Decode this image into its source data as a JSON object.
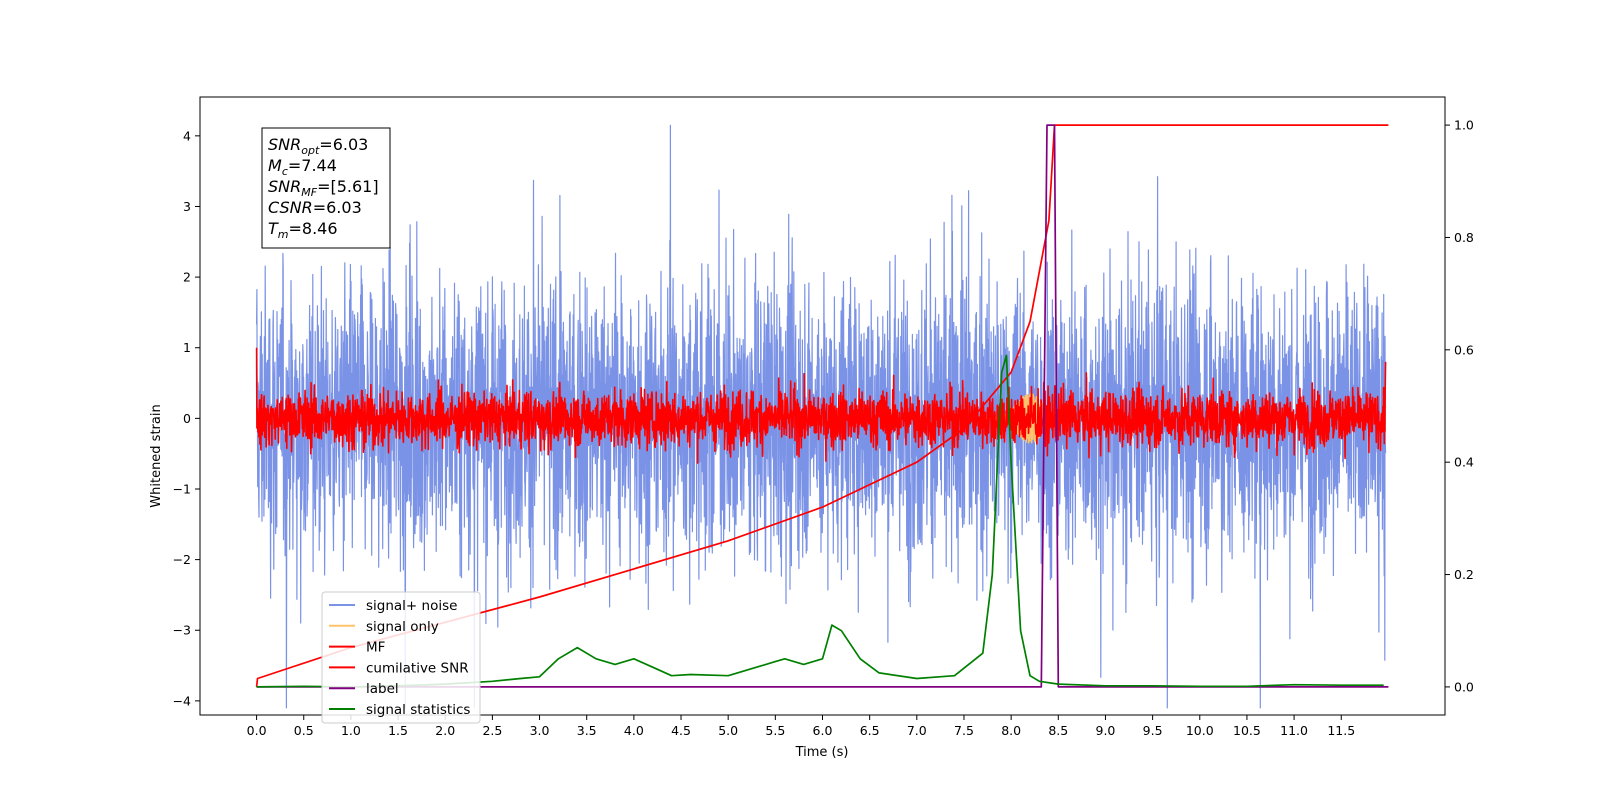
{
  "chart_data": {
    "type": "line",
    "xlabel": "Time (s)",
    "ylabel": "Whitened strain",
    "xlim": [
      -0.6,
      12.6
    ],
    "ylim": [
      -4.2,
      4.55
    ],
    "ylim_right": [
      -0.05,
      1.05
    ],
    "x_ticks": [
      "0.0",
      "0.5",
      "1.0",
      "1.5",
      "2.0",
      "2.5",
      "3.0",
      "3.5",
      "4.0",
      "4.5",
      "5.0",
      "5.5",
      "6.0",
      "6.5",
      "7.0",
      "7.5",
      "8.0",
      "8.5",
      "9.0",
      "9.5",
      "10.0",
      "10.5",
      "11.0",
      "11.5"
    ],
    "y_ticks": [
      "4",
      "3",
      "2",
      "1",
      "0",
      "−1",
      "−2",
      "−3",
      "−4"
    ],
    "y_ticks_right": [
      "1.0",
      "0.8",
      "0.6",
      "0.4",
      "0.2",
      "0.0"
    ],
    "legend_position": "lower-left",
    "annotation": {
      "lines": [
        {
          "name": "SNR",
          "sub": "opt",
          "value": "=6.03"
        },
        {
          "name": "M",
          "sub": "c",
          "value": "=7.44"
        },
        {
          "name": "SNR",
          "sub": "MF",
          "value": "=[5.61]"
        },
        {
          "name": "CSNR",
          "sub": "",
          "value": "=6.03"
        },
        {
          "name": "T",
          "sub": "m",
          "value": "=8.46"
        }
      ]
    },
    "series": [
      {
        "name": "signal+ noise",
        "color": "#7b93e6",
        "axis": "left",
        "kind": "noise",
        "amplitude": 1.0
      },
      {
        "name": "signal only",
        "color": "#ffc36b",
        "axis": "left",
        "kind": "chirp"
      },
      {
        "name": "MF",
        "color": "#ff0000",
        "axis": "left",
        "kind": "noise",
        "amplitude": 0.2
      },
      {
        "name": "cumilative SNR",
        "color": "#ff0000",
        "axis": "right",
        "x": [
          0.0,
          0.01,
          1,
          2,
          3,
          4,
          5,
          6,
          7,
          7.5,
          8.0,
          8.2,
          8.4,
          8.46,
          12.0
        ],
        "y": [
          0.0,
          0.015,
          0.07,
          0.115,
          0.16,
          0.21,
          0.26,
          0.32,
          0.4,
          0.46,
          0.56,
          0.65,
          0.83,
          1.0,
          1.0
        ]
      },
      {
        "name": "label",
        "color": "#800080",
        "axis": "right",
        "x": [
          0.0,
          8.32,
          8.38,
          8.46,
          8.5,
          12.0
        ],
        "y": [
          0.0,
          0.0,
          1.0,
          1.0,
          0.0,
          0.0
        ]
      },
      {
        "name": "signal statistics",
        "color": "#008000",
        "axis": "right",
        "x": [
          0.0,
          0.5,
          1.0,
          1.5,
          2.0,
          2.5,
          2.8,
          3.0,
          3.2,
          3.4,
          3.6,
          3.8,
          4.0,
          4.2,
          4.4,
          4.6,
          5.0,
          5.5,
          5.6,
          5.8,
          6.0,
          6.1,
          6.2,
          6.4,
          6.6,
          7.0,
          7.4,
          7.7,
          7.8,
          7.9,
          7.95,
          8.0,
          8.1,
          8.2,
          8.3,
          8.5,
          9.0,
          9.5,
          10.0,
          10.5,
          11.0,
          11.5,
          11.95
        ],
        "y": [
          0.0,
          0.001,
          0.0,
          0.002,
          0.005,
          0.01,
          0.015,
          0.018,
          0.05,
          0.07,
          0.05,
          0.04,
          0.05,
          0.035,
          0.02,
          0.022,
          0.02,
          0.045,
          0.05,
          0.04,
          0.05,
          0.11,
          0.1,
          0.05,
          0.025,
          0.015,
          0.02,
          0.06,
          0.2,
          0.56,
          0.59,
          0.4,
          0.1,
          0.02,
          0.01,
          0.005,
          0.002,
          0.002,
          0.001,
          0.001,
          0.004,
          0.003,
          0.003
        ]
      }
    ]
  }
}
